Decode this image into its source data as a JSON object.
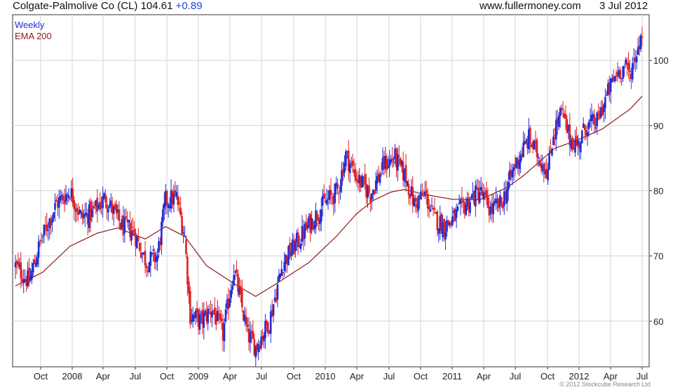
{
  "header": {
    "title": "Colgate-Palmolive Co (CL) 104.61",
    "change": "+0.89",
    "site": "www.fullermoney.com",
    "date": "3 Jul 2012"
  },
  "copyright": "© 2012 Stockcube Research Ltd",
  "chart_data": {
    "type": "candlestick",
    "legend": [
      {
        "label": "Weekly",
        "color": "#1f2bd6"
      },
      {
        "label": "EMA 200",
        "color": "#8b1a1a"
      }
    ],
    "colors": {
      "up": "#1f2bd6",
      "down": "#e02020",
      "ema": "#8b1a1a",
      "grid": "#d4d4d4",
      "axis": "#333333"
    },
    "x_ticks": [
      "Oct",
      "2008",
      "Apr",
      "Jul",
      "Oct",
      "2009",
      "Apr",
      "Jul",
      "Oct",
      "2010",
      "Apr",
      "Jul",
      "Oct",
      "2011",
      "Apr",
      "Jul",
      "Oct",
      "2012",
      "Apr",
      "Jul"
    ],
    "y_ticks": [
      60,
      70,
      80,
      90,
      100
    ],
    "ylim": [
      53,
      107
    ],
    "grid": true,
    "price_path": [
      [
        0,
        68.5
      ],
      [
        10,
        66
      ],
      [
        18,
        72
      ],
      [
        30,
        78
      ],
      [
        40,
        80
      ],
      [
        48,
        76
      ],
      [
        56,
        76.5
      ],
      [
        66,
        79
      ],
      [
        78,
        74.5
      ],
      [
        86,
        74
      ],
      [
        96,
        69
      ],
      [
        104,
        70
      ],
      [
        110,
        78.5
      ],
      [
        118,
        79
      ],
      [
        124,
        73
      ],
      [
        128,
        61
      ],
      [
        136,
        60
      ],
      [
        144,
        62
      ],
      [
        152,
        58
      ],
      [
        160,
        68
      ],
      [
        170,
        58
      ],
      [
        176,
        56
      ],
      [
        186,
        60
      ],
      [
        196,
        69
      ],
      [
        206,
        72
      ],
      [
        216,
        75
      ],
      [
        226,
        78
      ],
      [
        236,
        80
      ],
      [
        242,
        85.5
      ],
      [
        250,
        82
      ],
      [
        260,
        79.5
      ],
      [
        270,
        84
      ],
      [
        278,
        85
      ],
      [
        286,
        82
      ],
      [
        292,
        78
      ],
      [
        300,
        79.5
      ],
      [
        306,
        76
      ],
      [
        314,
        74.5
      ],
      [
        322,
        76
      ],
      [
        330,
        78
      ],
      [
        340,
        80
      ],
      [
        348,
        77
      ],
      [
        356,
        78
      ],
      [
        366,
        84
      ],
      [
        376,
        88
      ],
      [
        384,
        85
      ],
      [
        390,
        83
      ],
      [
        394,
        89
      ],
      [
        400,
        92
      ],
      [
        406,
        88
      ],
      [
        412,
        87
      ],
      [
        418,
        90
      ],
      [
        426,
        90.5
      ],
      [
        432,
        94
      ],
      [
        440,
        98
      ],
      [
        446,
        99
      ],
      [
        450,
        98
      ],
      [
        453,
        100
      ],
      [
        456,
        102
      ],
      [
        459,
        104.6
      ]
    ],
    "ema_path": [
      [
        0,
        65.4
      ],
      [
        20,
        67.5
      ],
      [
        40,
        71.5
      ],
      [
        60,
        73.5
      ],
      [
        75,
        74.3
      ],
      [
        95,
        72.6
      ],
      [
        110,
        74.5
      ],
      [
        124,
        73
      ],
      [
        140,
        68.5
      ],
      [
        162,
        65.5
      ],
      [
        176,
        63.8
      ],
      [
        190,
        65.6
      ],
      [
        215,
        69
      ],
      [
        235,
        73
      ],
      [
        250,
        76.5
      ],
      [
        262,
        78.5
      ],
      [
        275,
        79.8
      ],
      [
        285,
        80.2
      ],
      [
        300,
        79.4
      ],
      [
        320,
        78.7
      ],
      [
        340,
        78.6
      ],
      [
        360,
        80.5
      ],
      [
        372,
        82.3
      ],
      [
        395,
        86.5
      ],
      [
        412,
        87.8
      ],
      [
        430,
        89.5
      ],
      [
        450,
        92.5
      ],
      [
        459,
        94.5
      ]
    ]
  }
}
